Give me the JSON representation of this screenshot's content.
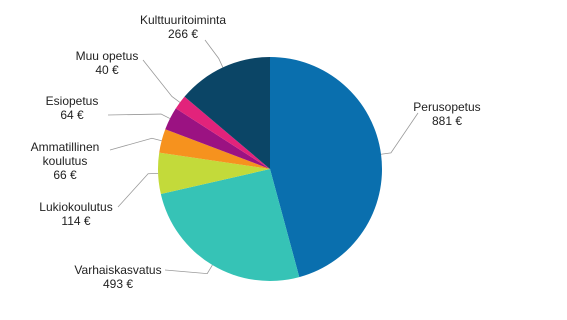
{
  "chart_data": {
    "type": "pie",
    "categories": [
      "Perusopetus",
      "Varhaiskasvatus",
      "Lukiokoulutus",
      "Ammatillinen koulutus",
      "Esiopetus",
      "Muu opetus",
      "Kulttuuritoiminta"
    ],
    "values": [
      881,
      493,
      114,
      66,
      64,
      40,
      266
    ],
    "value_labels": [
      "881 €",
      "493 €",
      "114 €",
      "66 €",
      "64 €",
      "40 €",
      "266 €"
    ],
    "colors": [
      "#0a6fae",
      "#36c3b6",
      "#c3da3a",
      "#f6921e",
      "#9b1282",
      "#e2237b",
      "#0b4566"
    ]
  }
}
